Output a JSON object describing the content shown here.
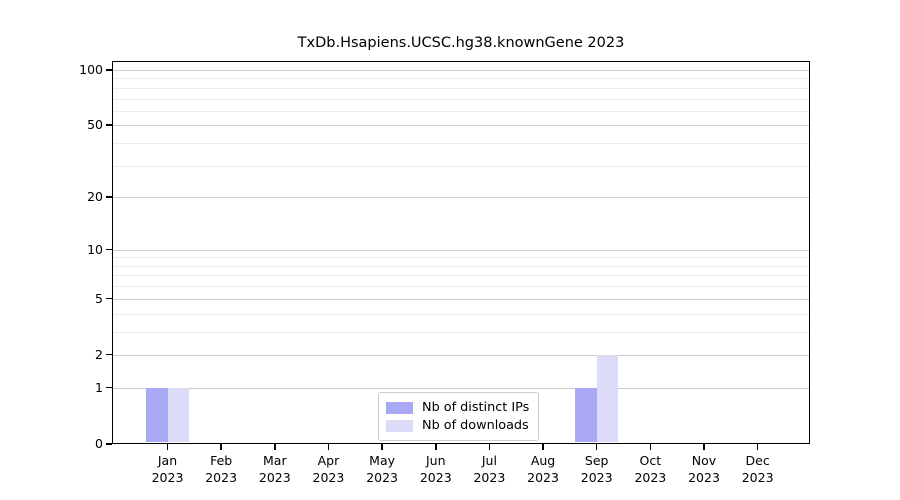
{
  "chart_data": {
    "type": "bar",
    "title": "TxDb.Hsapiens.UCSC.hg38.knownGene 2023",
    "yscale": "log1p",
    "grid": true,
    "categories": [
      "Jan",
      "Feb",
      "Mar",
      "Apr",
      "May",
      "Jun",
      "Jul",
      "Aug",
      "Sep",
      "Oct",
      "Nov",
      "Dec"
    ],
    "tick_year": "2023",
    "series": [
      {
        "name": "Nb of distinct IPs",
        "color": "#a9a9f5",
        "values": [
          1,
          0,
          0,
          0,
          0,
          0,
          0,
          0,
          1,
          0,
          0,
          0
        ]
      },
      {
        "name": "Nb of downloads",
        "color": "#dcdcf8",
        "values": [
          1,
          0,
          0,
          0,
          0,
          0,
          0,
          0,
          2,
          0,
          0,
          0
        ]
      }
    ],
    "y_major_ticks": [
      0,
      1,
      2,
      5,
      10,
      20,
      50,
      100
    ],
    "y_minor_gridlines": [
      3,
      4,
      6,
      7,
      8,
      9,
      30,
      40,
      60,
      70,
      80,
      90
    ],
    "ylim": [
      0,
      112
    ],
    "legend_position": "lower center"
  },
  "colors": {
    "major_grid": "#cccccc",
    "minor_grid": "#ececec",
    "axis": "#000000",
    "background": "#ffffff"
  }
}
